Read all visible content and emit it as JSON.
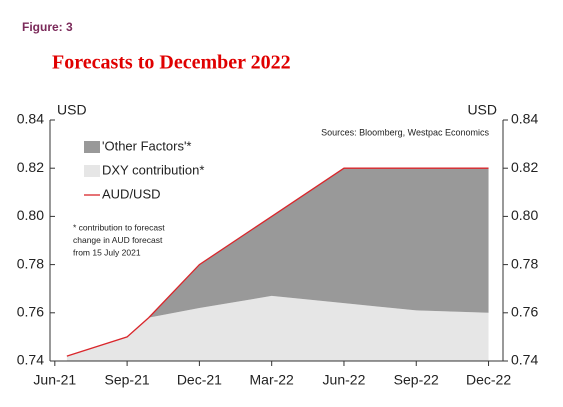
{
  "figure_label": "Figure: 3",
  "chart_data": {
    "type": "stacked_area_line",
    "title": "Forecasts to December 2022",
    "y_unit_left": "USD",
    "y_unit_right": "USD",
    "source": "Sources: Bloomberg, Westpac Economics",
    "annotation": [
      "* contribution to forecast",
      "change in AUD forecast",
      "from 15 July 2021"
    ],
    "x": [
      0.5,
      3,
      3.9,
      6,
      9,
      12,
      15,
      18
    ],
    "series": [
      {
        "name": "DXY contribution*",
        "color": "#e6e6e6",
        "kind": "area",
        "values": [
          0.742,
          0.75,
          0.758,
          0.762,
          0.767,
          0.764,
          0.761,
          0.76
        ]
      },
      {
        "name": "'Other Factors'*",
        "color": "#999999",
        "kind": "stacked_area",
        "values": [
          0,
          0,
          0,
          0.018,
          0.033,
          0.056,
          0.059,
          0.06
        ]
      },
      {
        "name": "AUD/USD",
        "color": "#d9262b",
        "kind": "line",
        "values": [
          0.742,
          0.75,
          0.758,
          0.78,
          0.8,
          0.82,
          0.82,
          0.82
        ]
      }
    ],
    "legend_order": [
      1,
      0,
      2
    ],
    "xlim": [
      -0.2,
      18.6
    ],
    "xticks": [
      {
        "value": 0,
        "label": "Jun-21"
      },
      {
        "value": 3,
        "label": "Sep-21"
      },
      {
        "value": 6,
        "label": "Dec-21"
      },
      {
        "value": 9,
        "label": "Mar-22"
      },
      {
        "value": 12,
        "label": "Jun-22"
      },
      {
        "value": 15,
        "label": "Sep-22"
      },
      {
        "value": 18,
        "label": "Dec-22"
      }
    ],
    "ylim": [
      0.74,
      0.84
    ],
    "yticks": [
      0.74,
      0.76,
      0.78,
      {
        "value": 0.8,
        "label": "0.80"
      },
      0.82,
      0.84
    ],
    "y2lim": [
      0.74,
      0.84
    ],
    "y2ticks": [
      0.74,
      0.76,
      0.78,
      {
        "value": 0.8,
        "label": "0.80"
      },
      0.82,
      0.84
    ]
  }
}
